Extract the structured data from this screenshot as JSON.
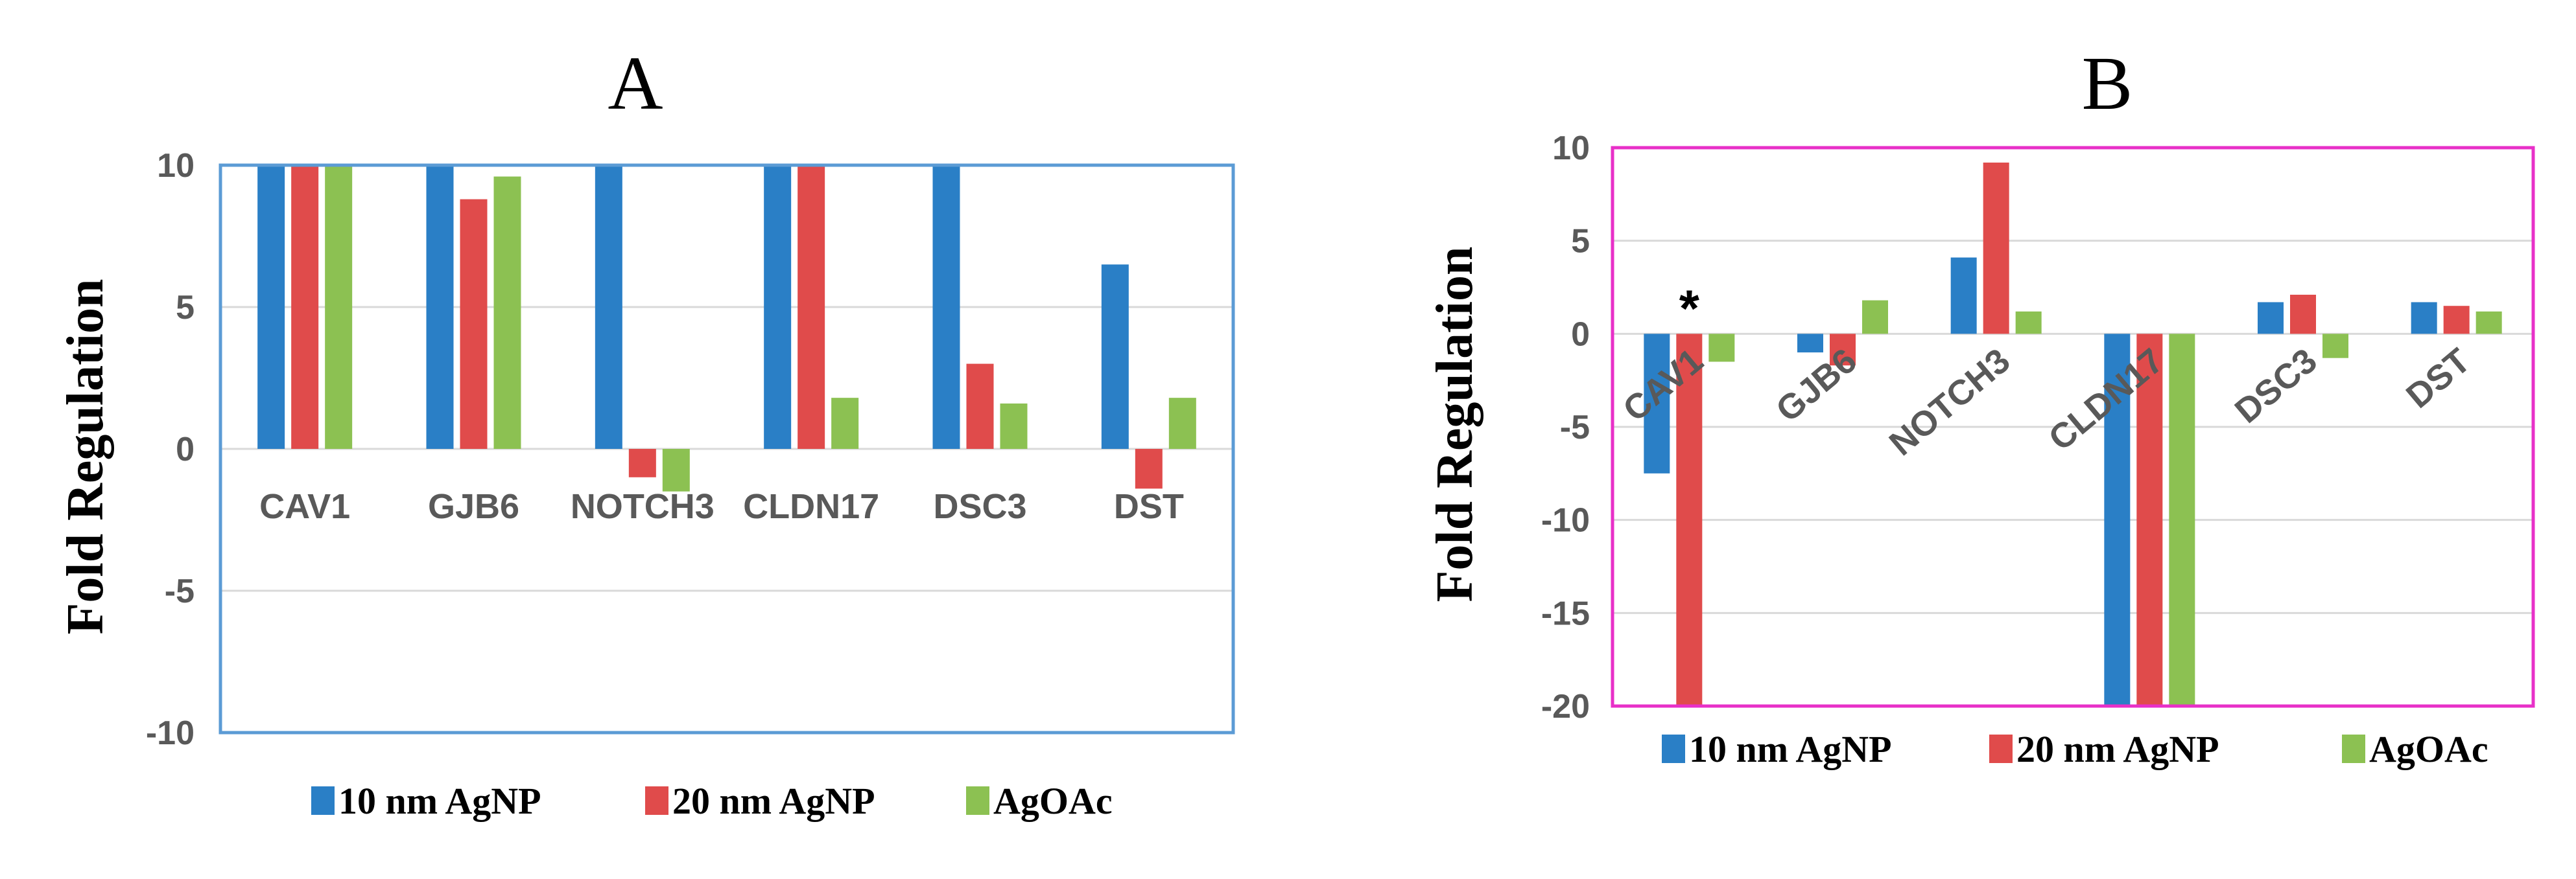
{
  "colors": {
    "series_10nm": "#2a7fc6",
    "series_20nm": "#e04b4b",
    "series_agoac": "#8cc152",
    "frame_A": "#5b9bd5",
    "frame_B": "#e830c8"
  },
  "chart_data": [
    {
      "panel": "A",
      "type": "bar",
      "title": "A",
      "ylabel": "Fold Regulation",
      "xlabel": "",
      "categories": [
        "CAV1",
        "GJB6",
        "NOTCH3",
        "CLDN17",
        "DSC3",
        "DST"
      ],
      "series": [
        {
          "name": "10 nm AgNP",
          "values": [
            10,
            10,
            10,
            10,
            10,
            6.5
          ]
        },
        {
          "name": "20 nm AgNP",
          "values": [
            10,
            8.8,
            -1.0,
            10,
            3.0,
            -1.4
          ]
        },
        {
          "name": "AgOAc",
          "values": [
            10,
            9.6,
            -1.5,
            1.8,
            1.6,
            1.8
          ]
        }
      ],
      "ylim": [
        -10,
        10
      ],
      "yticks": [
        -10,
        -5,
        0,
        5,
        10
      ],
      "ytick_labels": [
        "-10",
        "-5",
        "0",
        "5",
        "10"
      ],
      "grid": true,
      "legend_position": "bottom",
      "category_label_rotation": 0
    },
    {
      "panel": "B",
      "type": "bar",
      "title": "B",
      "ylabel": "Fold Regulation",
      "xlabel": "",
      "categories": [
        "CAV1",
        "GJB6",
        "NOTCH3",
        "CLDN17",
        "DSC3",
        "DST"
      ],
      "series": [
        {
          "name": "10 nm AgNP",
          "values": [
            -7.5,
            -1.0,
            4.1,
            -20,
            1.7,
            1.7
          ]
        },
        {
          "name": "20 nm AgNP",
          "values": [
            -20,
            -1.7,
            9.2,
            -20,
            2.1,
            1.5
          ]
        },
        {
          "name": "AgOAc",
          "values": [
            -1.5,
            1.8,
            1.2,
            -20,
            -1.3,
            1.2
          ]
        }
      ],
      "ylim": [
        -20,
        10
      ],
      "yticks": [
        -20,
        -15,
        -10,
        -5,
        0,
        5,
        10
      ],
      "ytick_labels": [
        "-20",
        "-15",
        "-10",
        "-5",
        "0",
        "5",
        "10"
      ],
      "grid": true,
      "legend_position": "bottom",
      "category_label_rotation": -40,
      "annotations": [
        {
          "text": "*",
          "category": "CAV1",
          "series": "20 nm AgNP"
        }
      ]
    }
  ]
}
